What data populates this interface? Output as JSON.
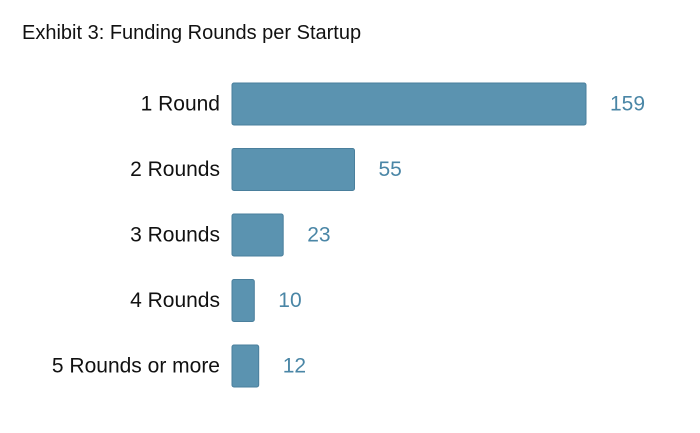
{
  "chart_data": {
    "type": "bar",
    "orientation": "horizontal",
    "title": "Exhibit 3: Funding Rounds per Startup",
    "categories": [
      "1 Round",
      "2 Rounds",
      "3 Rounds",
      "4 Rounds",
      "5 Rounds or more"
    ],
    "values": [
      159,
      55,
      23,
      10,
      12
    ],
    "xlabel": "",
    "ylabel": "",
    "xlim": [
      0,
      159
    ],
    "grid": false,
    "legend": "none",
    "colors": {
      "bar_fill": "#5b93b0",
      "bar_stroke": "#4a7f9c",
      "value_label": "#4a86a6",
      "text": "#111111"
    }
  }
}
